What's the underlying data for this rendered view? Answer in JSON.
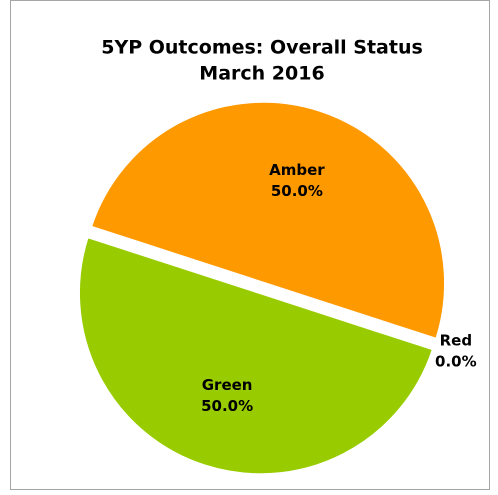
{
  "chart_data": {
    "type": "pie",
    "title": "5YP Outcomes: Overall Status",
    "subtitle": "March 2016",
    "categories": [
      "Amber",
      "Red",
      "Green"
    ],
    "values": [
      50,
      0,
      50
    ],
    "value_labels": [
      "50.0%",
      "0.0%",
      "50.0%"
    ],
    "colors": [
      "#ff9900",
      "#ff0000",
      "#99cc00"
    ]
  }
}
